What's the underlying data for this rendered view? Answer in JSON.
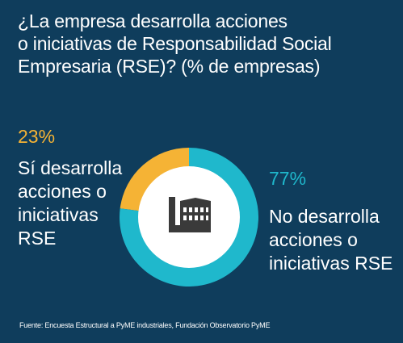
{
  "chart_data": {
    "type": "pie",
    "title_lines": [
      "¿La empresa desarrolla acciones",
      "o iniciativas de Responsabilidad Social",
      "Empresaria (RSE)? (% de empresas)"
    ],
    "slices": [
      {
        "percent_label": "23%",
        "value": 23,
        "label_lines": [
          "Sí desarrolla",
          "acciones o",
          "iniciativas",
          "RSE"
        ],
        "color": "#f5b335"
      },
      {
        "percent_label": "77%",
        "value": 77,
        "label_lines": [
          "No desarrolla",
          "acciones o",
          "iniciativas RSE"
        ],
        "color": "#1fb8cc"
      }
    ],
    "center_icon": "factory-icon",
    "source": "Fuente: Encuesta Estructural a PyME industriales, Fundación Observatorio PyME"
  },
  "colors": {
    "background": "#0f3d5c",
    "center_fill": "#ffffff",
    "icon": "#3a3a3a"
  }
}
